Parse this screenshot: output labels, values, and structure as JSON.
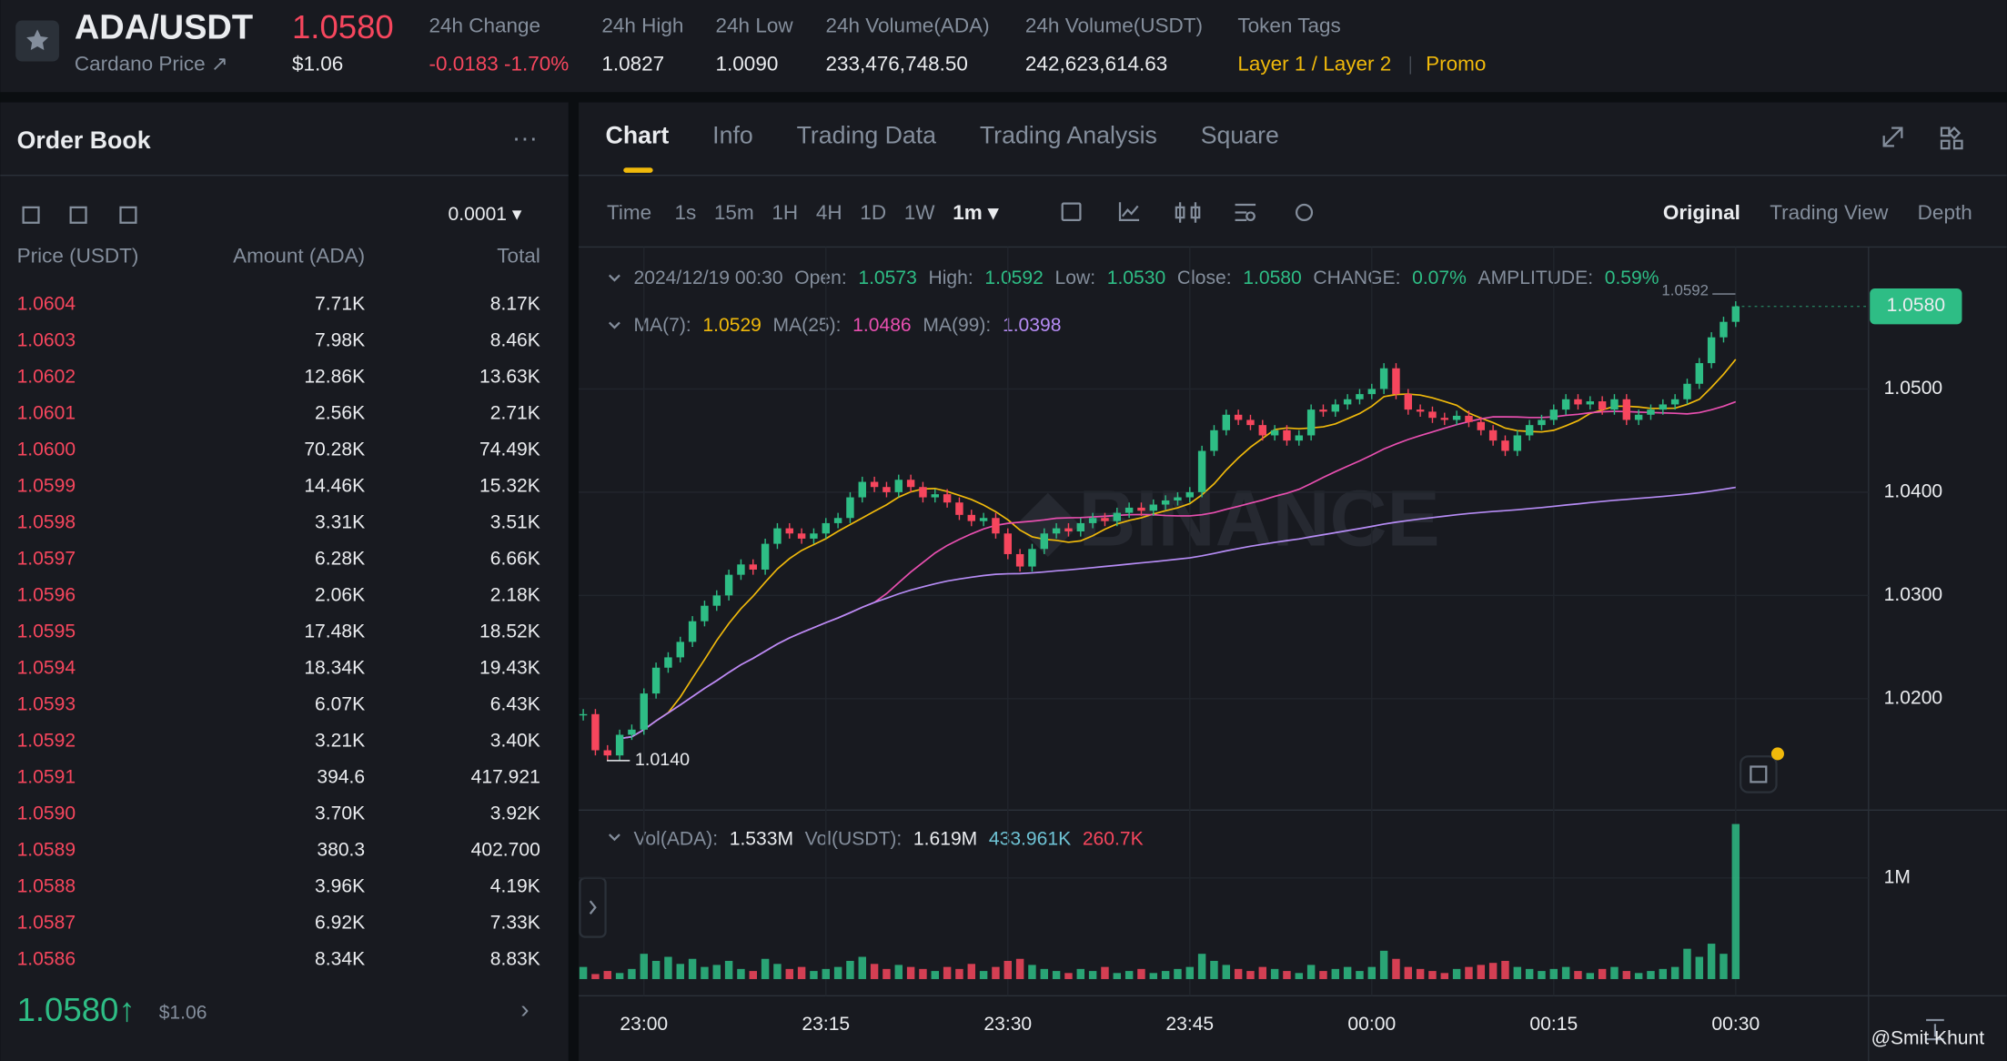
{
  "header": {
    "symbol": "ADA/USDT",
    "name": "Cardano Price ↗",
    "price": "1.0580",
    "price_usd": "$1.06",
    "stats": [
      {
        "label": "24h Change",
        "value": "-0.0183 -1.70%"
      },
      {
        "label": "24h High",
        "value": "1.0827"
      },
      {
        "label": "24h Low",
        "value": "1.0090"
      },
      {
        "label": "24h Volume(ADA)",
        "value": "233,476,748.50"
      },
      {
        "label": "24h Volume(USDT)",
        "value": "242,623,614.63"
      }
    ],
    "tags_label": "Token Tags",
    "tags": [
      "Layer 1 / Layer 2",
      "Promo"
    ]
  },
  "order_book": {
    "title": "Order Book",
    "tick": "0.0001 ▾",
    "columns": [
      "Price (USDT)",
      "Amount (ADA)",
      "Total"
    ],
    "asks": [
      [
        "1.0604",
        "7.71K",
        "8.17K"
      ],
      [
        "1.0603",
        "7.98K",
        "8.46K"
      ],
      [
        "1.0602",
        "12.86K",
        "13.63K"
      ],
      [
        "1.0601",
        "2.56K",
        "2.71K"
      ],
      [
        "1.0600",
        "70.28K",
        "74.49K"
      ],
      [
        "1.0599",
        "14.46K",
        "15.32K"
      ],
      [
        "1.0598",
        "3.31K",
        "3.51K"
      ],
      [
        "1.0597",
        "6.28K",
        "6.66K"
      ],
      [
        "1.0596",
        "2.06K",
        "2.18K"
      ],
      [
        "1.0595",
        "17.48K",
        "18.52K"
      ],
      [
        "1.0594",
        "18.34K",
        "19.43K"
      ],
      [
        "1.0593",
        "6.07K",
        "6.43K"
      ],
      [
        "1.0592",
        "3.21K",
        "3.40K"
      ],
      [
        "1.0591",
        "394.6",
        "417.921"
      ],
      [
        "1.0590",
        "3.70K",
        "3.92K"
      ],
      [
        "1.0589",
        "380.3",
        "402.700"
      ],
      [
        "1.0588",
        "3.96K",
        "4.19K"
      ],
      [
        "1.0587",
        "6.92K",
        "7.33K"
      ],
      [
        "1.0586",
        "8.34K",
        "8.83K"
      ]
    ],
    "last_price": "1.0580↑",
    "last_price_usd": "$1.06"
  },
  "tabs": [
    "Chart",
    "Info",
    "Trading Data",
    "Trading Analysis",
    "Square"
  ],
  "toolbar": {
    "intervals": [
      "Time",
      "1s",
      "15m",
      "1H",
      "4H",
      "1D",
      "1W",
      "1m ▾"
    ],
    "views": [
      "Original",
      "Trading View",
      "Depth"
    ]
  },
  "watermark": "@Smit Khunt",
  "chart_data": {
    "type": "candlestick",
    "info": [
      {
        "label": "2024/12/19 00:30",
        "value": null
      },
      {
        "label": "Open:",
        "value": "1.0573"
      },
      {
        "label": "High:",
        "value": "1.0592"
      },
      {
        "label": "Low:",
        "value": "1.0530"
      },
      {
        "label": "Close:",
        "value": "1.0580"
      },
      {
        "label": "CHANGE:",
        "value": "0.07%"
      },
      {
        "label": "AMPLITUDE:",
        "value": "0.59%"
      }
    ],
    "ma": [
      {
        "label": "MA(7):",
        "value": "1.0529",
        "color": "#f0b90b",
        "period": 7
      },
      {
        "label": "MA(25):",
        "value": "1.0486",
        "color": "#e84fb0",
        "period": 25
      },
      {
        "label": "MA(99):",
        "value": "1.0398",
        "color": "#b68cf5",
        "period": 99
      }
    ],
    "volume_legend": [
      {
        "label": "Vol(ADA):",
        "value": "1.533M",
        "color": "#eaecef"
      },
      {
        "label": "Vol(USDT):",
        "value": "1.619M",
        "color": "#eaecef"
      },
      {
        "label": null,
        "value": "433.961K",
        "color": "#6fc4d6"
      },
      {
        "label": null,
        "value": "260.7K",
        "color": "#f6465d"
      }
    ],
    "categories": [
      null,
      null,
      null,
      null,
      null,
      "23:00",
      null,
      null,
      null,
      null,
      null,
      null,
      null,
      null,
      null,
      null,
      null,
      null,
      null,
      null,
      "23:15",
      null,
      null,
      null,
      null,
      null,
      null,
      null,
      null,
      null,
      null,
      null,
      null,
      null,
      null,
      "23:30",
      null,
      null,
      null,
      null,
      null,
      null,
      null,
      null,
      null,
      null,
      null,
      null,
      null,
      null,
      "23:45",
      null,
      null,
      null,
      null,
      null,
      null,
      null,
      null,
      null,
      null,
      null,
      null,
      null,
      null,
      "00:00",
      null,
      null,
      null,
      null,
      null,
      null,
      null,
      null,
      null,
      null,
      null,
      null,
      null,
      null,
      "00:15",
      null,
      null,
      null,
      null,
      null,
      null,
      null,
      null,
      null,
      null,
      null,
      null,
      null,
      null,
      "00:30"
    ],
    "close": [
      1.0185,
      1.015,
      1.0145,
      1.0165,
      1.017,
      1.0205,
      1.023,
      1.024,
      1.0255,
      1.0275,
      1.029,
      1.03,
      1.032,
      1.033,
      1.0325,
      1.035,
      1.0365,
      1.036,
      1.0355,
      1.036,
      1.037,
      1.0375,
      1.0395,
      1.041,
      1.0405,
      1.04,
      1.0412,
      1.0405,
      1.0395,
      1.0398,
      1.039,
      1.0378,
      1.0372,
      1.0375,
      1.036,
      1.034,
      1.0328,
      1.0345,
      1.036,
      1.0365,
      1.0362,
      1.037,
      1.0375,
      1.0372,
      1.038,
      1.0385,
      1.0382,
      1.0388,
      1.0392,
      1.0395,
      1.04,
      1.044,
      1.046,
      1.0475,
      1.047,
      1.0465,
      1.0455,
      1.046,
      1.045,
      1.0455,
      1.048,
      1.0478,
      1.0485,
      1.049,
      1.0495,
      1.05,
      1.052,
      1.0495,
      1.048,
      1.0478,
      1.0472,
      1.047,
      1.0474,
      1.0468,
      1.046,
      1.045,
      1.044,
      1.0455,
      1.0465,
      1.047,
      1.048,
      1.049,
      1.0485,
      1.0488,
      1.048,
      1.049,
      1.047,
      1.0475,
      1.048,
      1.0485,
      1.049,
      1.0505,
      1.0525,
      1.055,
      1.0565,
      1.058
    ],
    "volume": [
      0.12,
      0.05,
      0.08,
      0.06,
      0.1,
      0.25,
      0.18,
      0.22,
      0.15,
      0.2,
      0.12,
      0.14,
      0.18,
      0.1,
      0.08,
      0.2,
      0.15,
      0.1,
      0.12,
      0.08,
      0.1,
      0.12,
      0.18,
      0.22,
      0.15,
      0.1,
      0.14,
      0.12,
      0.1,
      0.08,
      0.12,
      0.1,
      0.15,
      0.08,
      0.12,
      0.18,
      0.2,
      0.14,
      0.1,
      0.08,
      0.06,
      0.1,
      0.08,
      0.12,
      0.06,
      0.08,
      0.1,
      0.06,
      0.08,
      0.1,
      0.12,
      0.25,
      0.18,
      0.14,
      0.1,
      0.08,
      0.12,
      0.1,
      0.08,
      0.06,
      0.14,
      0.08,
      0.1,
      0.12,
      0.08,
      0.12,
      0.28,
      0.2,
      0.12,
      0.1,
      0.08,
      0.06,
      0.1,
      0.12,
      0.14,
      0.16,
      0.18,
      0.12,
      0.1,
      0.08,
      0.1,
      0.12,
      0.08,
      0.06,
      0.1,
      0.12,
      0.08,
      0.06,
      0.08,
      0.1,
      0.12,
      0.3,
      0.22,
      0.35,
      0.25,
      1.533
    ],
    "up_color": "#2ebd85",
    "down_color": "#f6465d",
    "ylim": [
      1.0092,
      1.0635
    ],
    "yticks": [
      {
        "value": 1.02,
        "label": "1.0200"
      },
      {
        "value": 1.03,
        "label": "1.0300"
      },
      {
        "value": 1.04,
        "label": "1.0400"
      },
      {
        "value": 1.05,
        "label": "1.0500"
      }
    ],
    "y2lim": [
      0,
      1.67
    ],
    "y2ticks": [
      {
        "value": 1,
        "label": "1M"
      }
    ],
    "last_price": {
      "value": 1.058,
      "label": "1.0580"
    },
    "annotations": [
      {
        "value": 1.0592,
        "label": "1.0592"
      },
      {
        "value": 1.014,
        "label": "1.0140"
      }
    ]
  }
}
